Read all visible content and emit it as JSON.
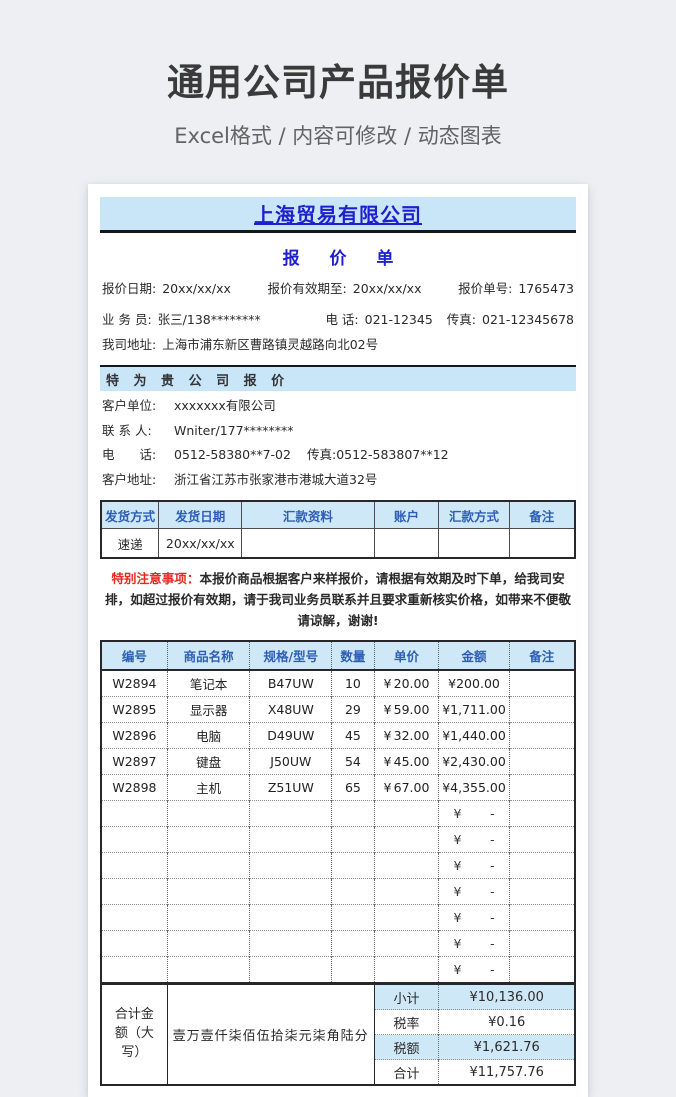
{
  "page": {
    "title": "通用公司产品报价单",
    "subtitle": "Excel格式 / 内容可修改 / 动态图表"
  },
  "colors": {
    "band_blue": "#c9e6f8",
    "header_text_blue": "#2e5eb5",
    "company_blue": "#1f1fce",
    "notice_red": "#e8281e",
    "page_bg": "#edeff3"
  },
  "doc": {
    "company": "上海贸易有限公司",
    "doc_title": "报 价 单",
    "meta": {
      "date_label": "报价日期:",
      "date": "20xx/xx/xx",
      "valid_label": "报价有效期至:",
      "valid": "20xx/xx/xx",
      "no_label": "报价单号:",
      "no": "1765473"
    },
    "seller": {
      "salesman_label": "业 务 员:",
      "salesman": "张三/138********",
      "tel_label": "电 话:",
      "tel": "021-12345",
      "fax_label": "传真:",
      "fax": "021-12345678",
      "addr_label": "我司地址:",
      "addr": "上海市浦东新区曹路镇灵越路向北02号"
    },
    "for_customer_band": "特 为 贵 公 司 报 价",
    "customer": {
      "unit_label": "客户单位:",
      "unit": "xxxxxxx有限公司",
      "contact_label": "联 系 人:",
      "contact": "Wniter/177********",
      "tel_label": "电　　话:",
      "tel": "0512-58380**7-02",
      "fax_label": "传真:",
      "fax": "0512-583807**12",
      "addr_label": "客户地址:",
      "addr": "浙江省江苏市张家港市港城大道32号"
    },
    "shipping_table": {
      "headers": [
        "发货方式",
        "发货日期",
        "汇款资料",
        "账户",
        "汇款方式",
        "备注"
      ],
      "row": [
        "速递",
        "20xx/xx/xx",
        "",
        "",
        "",
        ""
      ]
    },
    "notice": {
      "label": "特别注意事项：",
      "text": "本报价商品根据客户来样报价，请根据有效期及时下单，给我司安排，如超过报价有效期，请于我司业务员联系并且要求重新核实价格，如带来不便敬请谅解，谢谢!"
    },
    "items_table": {
      "headers": [
        "编号",
        "商品名称",
        "规格/型号",
        "数量",
        "单价",
        "金额",
        "备注"
      ],
      "currency": "¥",
      "empty_dash": "-",
      "empty_row_count": 7,
      "rows": [
        {
          "id": "W2894",
          "name": "笔记本",
          "model": "B47UW",
          "qty": "10",
          "price": "20.00",
          "amount": "¥200.00",
          "note": ""
        },
        {
          "id": "W2895",
          "name": "显示器",
          "model": "X48UW",
          "qty": "29",
          "price": "59.00",
          "amount": "¥1,711.00",
          "note": ""
        },
        {
          "id": "W2896",
          "name": "电脑",
          "model": "D49UW",
          "qty": "45",
          "price": "32.00",
          "amount": "¥1,440.00",
          "note": ""
        },
        {
          "id": "W2897",
          "name": "键盘",
          "model": "J50UW",
          "qty": "54",
          "price": "45.00",
          "amount": "¥2,430.00",
          "note": ""
        },
        {
          "id": "W2898",
          "name": "主机",
          "model": "Z51UW",
          "qty": "65",
          "price": "67.00",
          "amount": "¥4,355.00",
          "note": ""
        }
      ]
    },
    "totals": {
      "caps_label": "合计金额（大写）",
      "caps_value": "壹万壹仟柒佰伍拾柒元柒角陆分",
      "rows": [
        {
          "label": "小计",
          "value": "¥10,136.00",
          "highlight": true
        },
        {
          "label": "税率",
          "value": "¥0.16",
          "highlight": false
        },
        {
          "label": "税额",
          "value": "¥1,621.76",
          "highlight": true
        },
        {
          "label": "合计",
          "value": "¥11,757.76",
          "highlight": false
        }
      ]
    }
  }
}
